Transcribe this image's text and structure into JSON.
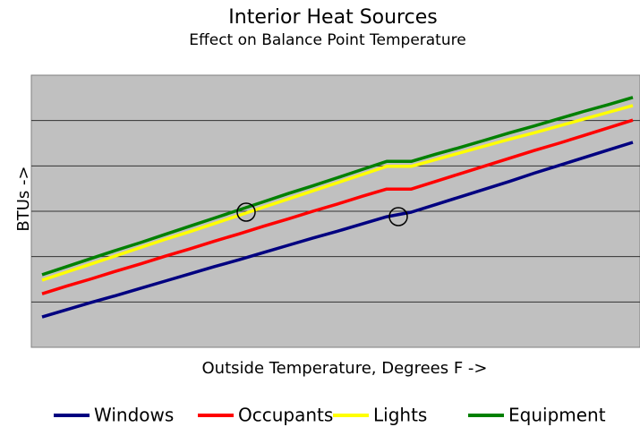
{
  "chart_data": {
    "type": "line",
    "title": "Interior Heat Sources",
    "subtitle": "Effect on Balance Point Temperature",
    "x_label": "Outside Temperature, Degrees F ->",
    "y_label": "BTUs ->",
    "categories": [
      null,
      null,
      null,
      null,
      null,
      null,
      null,
      null,
      null,
      null,
      null,
      null,
      null,
      null,
      null,
      null,
      null,
      null,
      null,
      null,
      null,
      null,
      null,
      null,
      null
    ],
    "ylim": [
      0,
      6
    ],
    "yticks": [
      1,
      2,
      3,
      4,
      5
    ],
    "grid": true,
    "legend": "bottom",
    "series": [
      {
        "name": "Windows",
        "color": "#000080",
        "values": [
          0.67,
          0.83,
          0.99,
          1.14,
          1.3,
          1.46,
          1.62,
          1.78,
          1.93,
          2.09,
          2.25,
          2.41,
          2.56,
          2.72,
          2.88,
          2.98,
          3.15,
          3.32,
          3.49,
          3.66,
          3.84,
          4.01,
          4.18,
          4.35,
          4.52
        ]
      },
      {
        "name": "Occupants",
        "color": "#ff0000",
        "values": [
          1.18,
          1.35,
          1.51,
          1.68,
          1.84,
          2.01,
          2.17,
          2.34,
          2.5,
          2.67,
          2.83,
          3.0,
          3.16,
          3.33,
          3.49,
          3.49,
          3.66,
          3.83,
          4.0,
          4.17,
          4.34,
          4.5,
          4.67,
          4.84,
          5.01
        ]
      },
      {
        "name": "Lights",
        "color": "#ffff00",
        "values": [
          1.48,
          1.66,
          1.84,
          2.02,
          2.2,
          2.38,
          2.55,
          2.73,
          2.91,
          3.09,
          3.27,
          3.45,
          3.63,
          3.81,
          3.99,
          3.99,
          4.14,
          4.29,
          4.44,
          4.59,
          4.73,
          4.88,
          5.03,
          5.18,
          5.33
        ]
      },
      {
        "name": "Equipment",
        "color": "#008000",
        "values": [
          1.6,
          1.78,
          1.96,
          2.14,
          2.31,
          2.49,
          2.67,
          2.85,
          3.03,
          3.21,
          3.39,
          3.56,
          3.74,
          3.92,
          4.1,
          4.1,
          4.26,
          4.41,
          4.57,
          4.73,
          4.88,
          5.04,
          5.2,
          5.35,
          5.51
        ]
      }
    ]
  }
}
